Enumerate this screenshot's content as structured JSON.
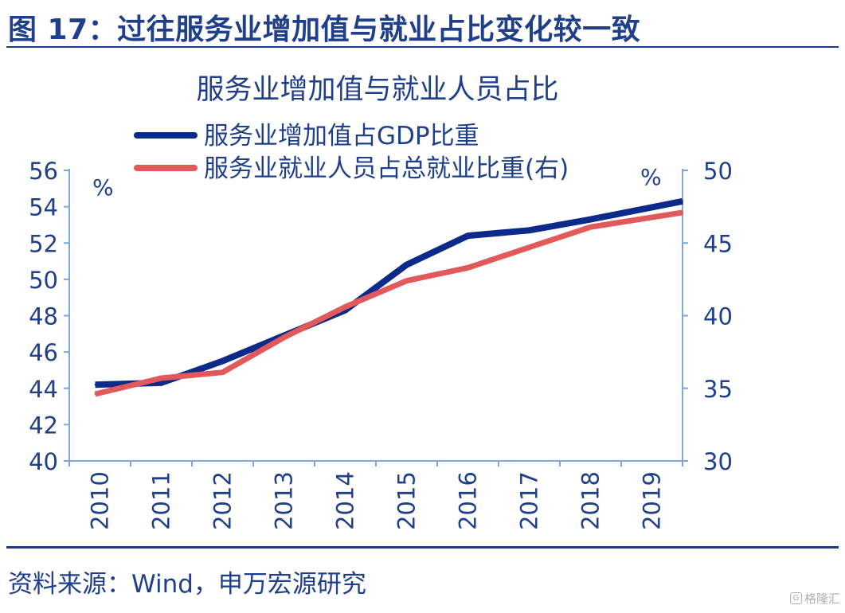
{
  "figure": {
    "title": "图 17：过往服务业增加值与就业占比变化较一致",
    "source": "资料来源：Wind，申万宏源研究",
    "watermark": "格隆汇"
  },
  "chart_data": {
    "type": "line",
    "title": "服务业增加值与就业人员占比",
    "categories": [
      "2010",
      "2011",
      "2012",
      "2013",
      "2014",
      "2015",
      "2016",
      "2017",
      "2018",
      "2019"
    ],
    "left_axis": {
      "unit": "%",
      "ylim": [
        40,
        56
      ],
      "ticks": [
        40,
        42,
        44,
        46,
        48,
        50,
        52,
        54,
        56
      ]
    },
    "right_axis": {
      "unit": "%",
      "ylim": [
        30,
        50
      ],
      "ticks": [
        30,
        35,
        40,
        45,
        50
      ]
    },
    "legend_placement": "top",
    "grid": false,
    "series": [
      {
        "name": "服务业增加值占GDP比重",
        "axis": "left",
        "color": "#0b2a8a",
        "values": [
          44.2,
          44.3,
          45.5,
          46.9,
          48.3,
          50.8,
          52.4,
          52.7,
          53.3,
          54.3
        ]
      },
      {
        "name": "服务业就业人员占总就业比重(右)",
        "axis": "right",
        "color": "#e2595b",
        "values": [
          34.6,
          35.7,
          36.1,
          38.5,
          40.6,
          42.4,
          43.3,
          44.7,
          46.1,
          47.1
        ]
      }
    ]
  }
}
